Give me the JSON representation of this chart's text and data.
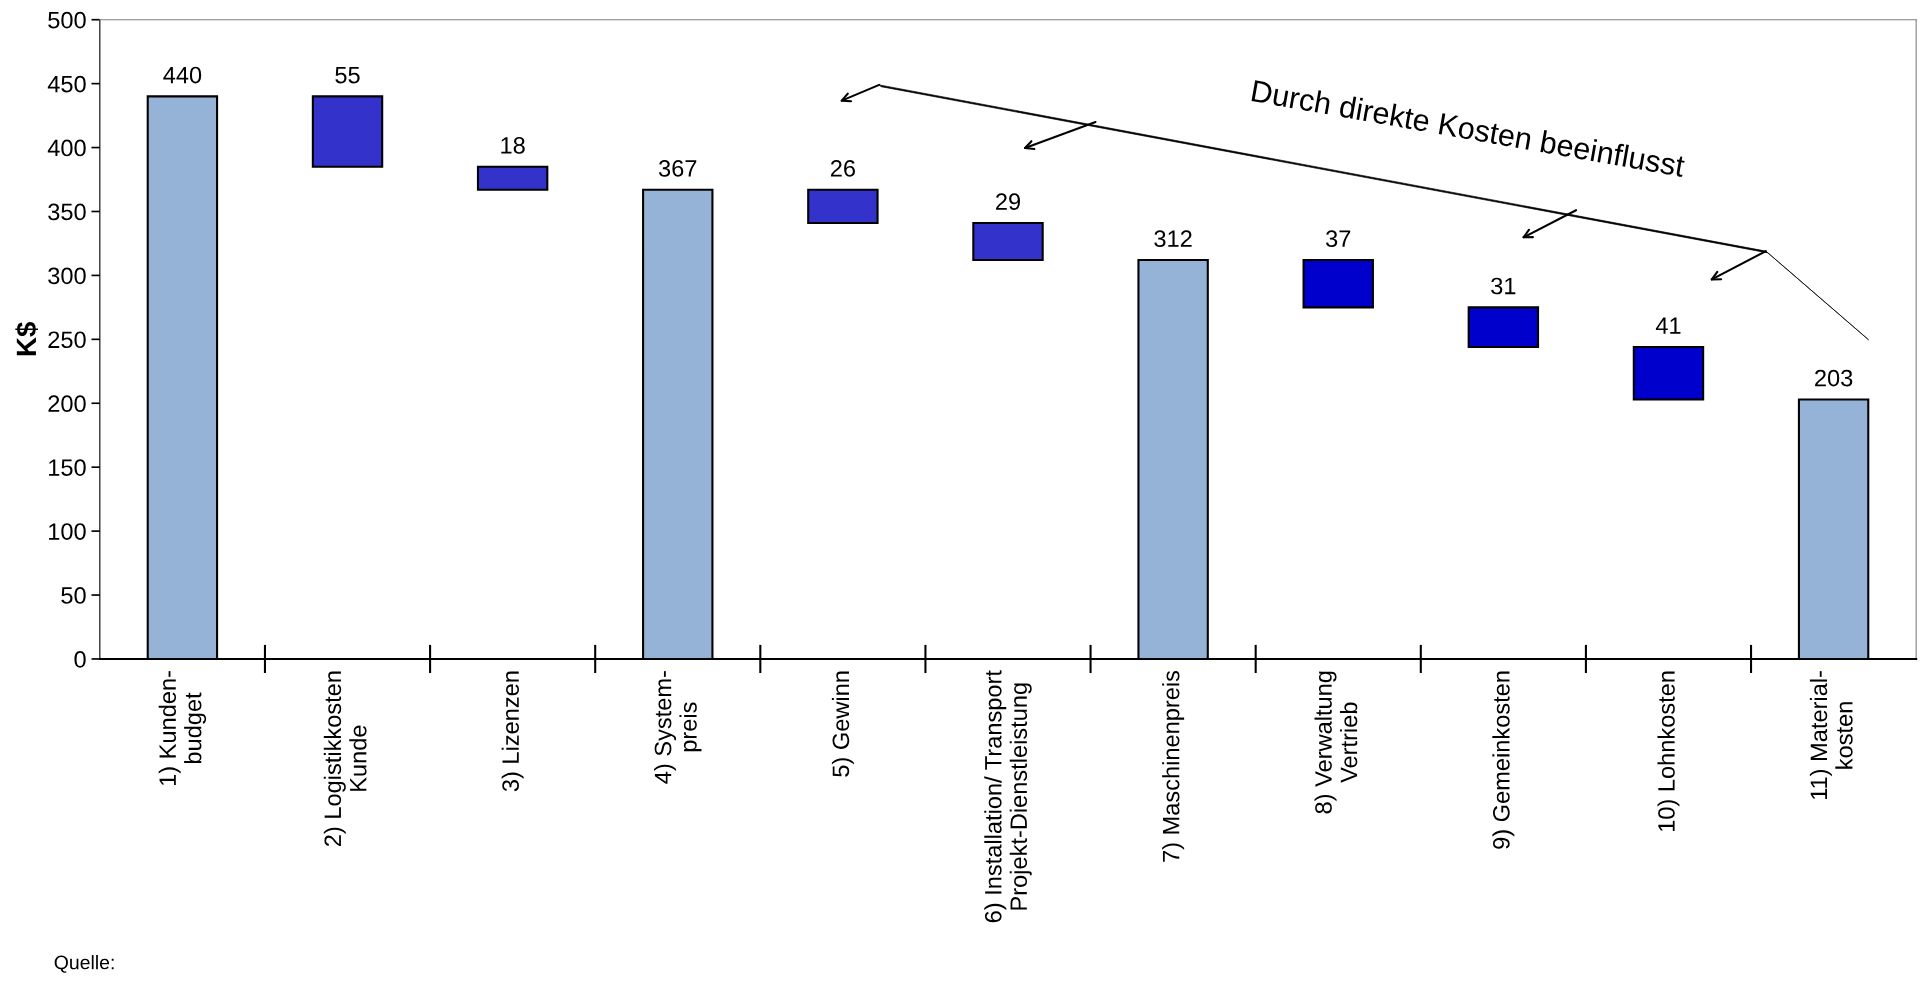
{
  "chart_data": {
    "type": "bar",
    "ylabel": "K$",
    "categories": [
      "1) Kunden-\nbudget",
      "2) Logistikkosten\nKunde",
      "3) Lizenzen",
      "4) System-\npreis",
      "5) Gewinn",
      "6) Installation/ Transport\nProjekt-Dienstleistung",
      "7) Maschinenpreis",
      "8) Verwaltung\nVertrieb",
      "9) Gemeinkosten",
      "10) Lohnkosten",
      "11) Material-\nkosten"
    ],
    "values": [
      440,
      55,
      18,
      367,
      26,
      29,
      312,
      37,
      31,
      41,
      203
    ],
    "base": [
      0,
      385,
      367,
      0,
      341,
      312,
      0,
      275,
      244,
      203,
      0
    ],
    "colors": [
      "#95b3d7",
      "#3333cc",
      "#3333cc",
      "#95b3d7",
      "#3333cc",
      "#3333cc",
      "#95b3d7",
      "#0000cc",
      "#0000cc",
      "#0000cc",
      "#95b3d7"
    ],
    "ylim": [
      0,
      500
    ],
    "yticks": [
      0,
      50,
      100,
      150,
      200,
      250,
      300,
      350,
      400,
      450,
      500
    ],
    "data_labels": true,
    "grid": false,
    "legend": false,
    "annotations": [
      "Durch direkte Kosten beeinflusst",
      "Quelle:"
    ]
  }
}
